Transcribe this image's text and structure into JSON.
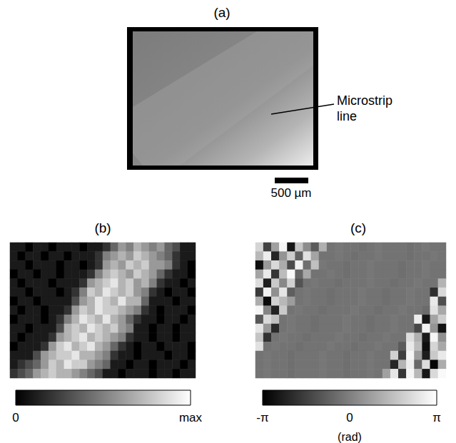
{
  "image_panel": {
    "label": "(a)",
    "annotation": "Microstrip line",
    "scale_bar_label": "500 µm"
  },
  "chart_data": [
    {
      "type": "heatmap",
      "label": "(b)",
      "tick_labels": false,
      "colorbar_range": [
        0,
        1
      ],
      "colorbar_ticks": [
        0,
        {
          "value": 1,
          "label": "max"
        }
      ],
      "cells": [
        [
          0.1,
          0.1,
          0.0,
          0.1,
          0.1,
          0.0,
          0.1,
          0.1,
          0.1,
          0.0,
          0.1,
          0.1,
          0.2,
          0.4,
          0.6,
          0.5,
          0.7,
          0.6,
          0.5,
          0.6,
          0.4,
          0.3,
          0.1,
          0.1
        ],
        [
          0.1,
          0.0,
          0.1,
          0.1,
          0.0,
          0.1,
          0.1,
          0.0,
          0.1,
          0.1,
          0.1,
          0.2,
          0.5,
          0.6,
          0.7,
          0.6,
          0.8,
          0.7,
          0.6,
          0.5,
          0.4,
          0.2,
          0.1,
          0.1
        ],
        [
          0.1,
          0.1,
          0.0,
          0.1,
          0.1,
          0.1,
          0.0,
          0.1,
          0.1,
          0.0,
          0.1,
          0.2,
          0.6,
          0.7,
          0.6,
          0.8,
          0.7,
          0.8,
          0.6,
          0.6,
          0.5,
          0.2,
          0.1,
          0.0
        ],
        [
          0.0,
          0.1,
          0.1,
          0.0,
          0.1,
          0.1,
          0.0,
          0.1,
          0.1,
          0.1,
          0.2,
          0.5,
          0.7,
          0.8,
          0.7,
          0.6,
          0.8,
          0.7,
          0.6,
          0.4,
          0.2,
          0.1,
          0.1,
          0.0
        ],
        [
          0.1,
          0.0,
          0.1,
          0.1,
          0.1,
          0.0,
          0.1,
          0.1,
          0.1,
          0.2,
          0.6,
          0.7,
          0.8,
          0.9,
          0.7,
          0.8,
          0.6,
          0.7,
          0.5,
          0.2,
          0.1,
          0.1,
          0.0,
          0.1
        ],
        [
          0.1,
          0.1,
          0.0,
          0.1,
          0.1,
          0.1,
          0.0,
          0.1,
          0.2,
          0.5,
          0.8,
          0.7,
          0.9,
          0.8,
          0.7,
          0.8,
          0.6,
          0.5,
          0.2,
          0.1,
          0.0,
          0.1,
          0.1,
          0.0
        ],
        [
          0.0,
          0.1,
          0.1,
          0.0,
          0.1,
          0.1,
          0.1,
          0.1,
          0.3,
          0.6,
          0.7,
          0.9,
          0.8,
          0.7,
          0.9,
          0.7,
          0.7,
          0.4,
          0.1,
          0.1,
          0.1,
          0.0,
          0.1,
          0.1
        ],
        [
          0.1,
          0.0,
          0.1,
          0.1,
          0.0,
          0.1,
          0.1,
          0.2,
          0.6,
          0.8,
          0.7,
          0.9,
          0.8,
          0.8,
          0.7,
          0.6,
          0.5,
          0.2,
          0.1,
          0.0,
          0.1,
          0.1,
          0.1,
          0.0
        ],
        [
          0.0,
          0.1,
          0.1,
          0.1,
          0.0,
          0.1,
          0.2,
          0.5,
          0.7,
          0.9,
          0.8,
          0.7,
          0.9,
          0.7,
          0.6,
          0.4,
          0.2,
          0.1,
          0.1,
          0.0,
          0.1,
          0.1,
          0.0,
          0.1
        ],
        [
          0.1,
          0.1,
          0.0,
          0.1,
          0.1,
          0.1,
          0.3,
          0.7,
          0.8,
          0.7,
          0.9,
          0.8,
          0.7,
          0.8,
          0.6,
          0.5,
          0.1,
          0.1,
          0.0,
          0.1,
          0.1,
          0.0,
          0.1,
          0.1
        ],
        [
          0.1,
          0.0,
          0.1,
          0.1,
          0.1,
          0.2,
          0.6,
          0.7,
          0.8,
          0.9,
          0.7,
          0.8,
          0.7,
          0.6,
          0.5,
          0.2,
          0.1,
          0.1,
          0.0,
          0.1,
          0.1,
          0.0,
          0.1,
          0.1
        ],
        [
          0.0,
          0.1,
          0.1,
          0.1,
          0.2,
          0.6,
          0.8,
          0.9,
          0.7,
          0.8,
          0.9,
          0.7,
          0.6,
          0.4,
          0.2,
          0.1,
          0.0,
          0.1,
          0.1,
          0.0,
          0.1,
          0.1,
          0.1,
          0.0
        ],
        [
          0.1,
          0.1,
          0.1,
          0.3,
          0.6,
          0.7,
          0.8,
          0.8,
          0.9,
          0.7,
          0.7,
          0.6,
          0.5,
          0.2,
          0.1,
          0.1,
          0.0,
          0.1,
          0.1,
          0.1,
          0.0,
          0.1,
          0.1,
          0.0
        ],
        [
          0.1,
          0.2,
          0.3,
          0.4,
          0.6,
          0.8,
          0.7,
          0.9,
          0.8,
          0.8,
          0.6,
          0.5,
          0.4,
          0.1,
          0.1,
          0.0,
          0.1,
          0.1,
          0.0,
          0.1,
          0.1,
          0.1,
          0.0,
          0.1
        ],
        [
          0.2,
          0.3,
          0.4,
          0.6,
          0.7,
          0.8,
          0.7,
          0.7,
          0.6,
          0.5,
          0.4,
          0.3,
          0.1,
          0.1,
          0.0,
          0.1,
          0.1,
          0.1,
          0.0,
          0.1,
          0.1,
          0.0,
          0.1,
          0.1
        ]
      ]
    },
    {
      "type": "heatmap",
      "label": "(c)",
      "tick_labels": false,
      "colorbar_range": [
        -3.1416,
        3.1416
      ],
      "colorbar_ticks": [
        {
          "value": -3.1416,
          "label": "-π"
        },
        0,
        {
          "value": 3.1416,
          "label": "π"
        }
      ],
      "colorbar_label": "(rad)",
      "cells": [
        [
          2.1,
          -1.5,
          0.8,
          2.9,
          -2.6,
          1.7,
          0.3,
          -0.9,
          1.2,
          -0.3,
          -0.2,
          -0.3,
          -0.3,
          -0.4,
          -0.3,
          -0.2,
          -0.3,
          -0.3,
          -0.3,
          -0.4,
          -0.3,
          -0.2,
          -0.3,
          -0.3
        ],
        [
          1.4,
          2.7,
          -2.2,
          0.5,
          1.9,
          -0.7,
          2.4,
          0.9,
          -0.3,
          -0.3,
          -0.2,
          -0.3,
          -0.4,
          -0.3,
          -0.3,
          -0.2,
          -0.3,
          -0.3,
          -0.3,
          -0.4,
          -0.3,
          -0.3,
          -0.2,
          -0.3
        ],
        [
          -2.8,
          0.6,
          2.2,
          1.1,
          -1.3,
          2.8,
          -0.4,
          1.6,
          -0.2,
          -0.3,
          -0.3,
          -0.4,
          -0.3,
          -0.3,
          -0.2,
          -0.3,
          -0.3,
          -0.3,
          -0.4,
          -0.3,
          -0.3,
          -0.2,
          -0.3,
          -0.3
        ],
        [
          0.9,
          2.6,
          -1.8,
          1.5,
          3.0,
          -0.6,
          1.0,
          -0.3,
          -0.3,
          -0.2,
          -0.3,
          -0.4,
          -0.3,
          -0.3,
          -0.2,
          -0.3,
          -0.3,
          -0.3,
          -0.4,
          -0.3,
          -0.3,
          -0.2,
          -0.3,
          -0.3
        ],
        [
          2.3,
          -2.4,
          1.8,
          0.2,
          2.0,
          -1.1,
          -0.3,
          -0.2,
          -0.3,
          -0.3,
          -0.4,
          -0.3,
          -0.3,
          -0.3,
          -0.2,
          -0.3,
          -0.3,
          -0.4,
          -0.3,
          -0.3,
          -0.2,
          -0.3,
          -0.3,
          1.3
        ],
        [
          -1.7,
          2.8,
          0.4,
          2.5,
          -0.8,
          -0.3,
          -0.2,
          -0.3,
          -0.3,
          -0.4,
          -0.3,
          -0.3,
          -0.3,
          -0.2,
          -0.3,
          -0.3,
          -0.4,
          -0.3,
          -0.3,
          -0.2,
          -0.3,
          -0.3,
          -2.0,
          2.2
        ],
        [
          1.1,
          -2.9,
          2.0,
          1.4,
          0.7,
          -0.3,
          -0.2,
          -0.3,
          -0.3,
          -0.4,
          -0.3,
          -0.3,
          -0.3,
          -0.2,
          -0.3,
          -0.3,
          -0.4,
          -0.3,
          -0.3,
          -0.2,
          -0.3,
          -0.3,
          2.6,
          -1.2
        ],
        [
          2.9,
          0.1,
          -2.3,
          1.8,
          -0.3,
          -0.2,
          -0.3,
          -0.3,
          -0.4,
          -0.3,
          -0.3,
          -0.3,
          -0.2,
          -0.3,
          -0.3,
          -0.4,
          -0.3,
          -0.3,
          -0.2,
          -0.3,
          -0.3,
          -0.5,
          2.4,
          1.0
        ],
        [
          -1.0,
          2.2,
          1.6,
          -0.3,
          -0.2,
          -0.3,
          -0.3,
          -0.4,
          -0.3,
          -0.3,
          -0.3,
          -0.2,
          -0.3,
          -0.3,
          -0.4,
          -0.3,
          -0.3,
          -0.2,
          -0.3,
          -0.3,
          2.7,
          -2.6,
          0.9,
          1.9
        ],
        [
          2.5,
          0.6,
          -2.1,
          -0.3,
          -0.2,
          -0.3,
          -0.3,
          -0.4,
          -0.3,
          -0.3,
          -0.3,
          -0.2,
          -0.3,
          -0.3,
          -0.4,
          -0.3,
          -0.3,
          -0.2,
          -0.3,
          -0.3,
          -1.4,
          2.8,
          0.5,
          -2.7
        ],
        [
          1.7,
          -1.9,
          -0.3,
          -0.2,
          -0.3,
          -0.3,
          -0.4,
          -0.3,
          -0.3,
          -0.3,
          -0.2,
          -0.3,
          -0.3,
          -0.4,
          -0.3,
          -0.3,
          -0.2,
          -0.3,
          -0.3,
          2.3,
          1.2,
          -2.5,
          2.9,
          0.4
        ],
        [
          2.4,
          -0.3,
          -0.2,
          -0.3,
          -0.3,
          -0.4,
          -0.3,
          -0.3,
          -0.3,
          -0.2,
          -0.3,
          -0.3,
          -0.4,
          -0.3,
          -0.3,
          -0.2,
          -0.3,
          -0.3,
          -0.9,
          2.6,
          1.5,
          -2.8,
          2.1,
          1.0
        ],
        [
          -0.3,
          -0.2,
          -0.3,
          -0.3,
          -0.4,
          -0.3,
          -0.3,
          -0.3,
          -0.2,
          -0.3,
          -0.3,
          -0.4,
          -0.3,
          -0.3,
          -0.2,
          -0.3,
          -0.3,
          2.0,
          -1.6,
          2.9,
          0.7,
          -2.4,
          1.8,
          2.6
        ],
        [
          -0.3,
          -0.2,
          -0.3,
          -0.3,
          -0.4,
          -0.3,
          -0.3,
          -0.3,
          -0.2,
          -0.3,
          -0.3,
          -0.4,
          -0.3,
          -0.3,
          -0.2,
          -0.3,
          -0.3,
          -2.2,
          1.3,
          2.7,
          -0.6,
          2.3,
          -3.0,
          1.1
        ],
        [
          -0.3,
          -0.2,
          -0.3,
          -0.3,
          -0.4,
          -0.3,
          -0.3,
          -0.3,
          -0.2,
          -0.3,
          -0.3,
          -0.4,
          -0.3,
          -0.3,
          -0.2,
          -0.3,
          0.8,
          2.5,
          -1.8,
          2.9,
          1.4,
          -2.6,
          2.2,
          3.0
        ]
      ]
    }
  ]
}
